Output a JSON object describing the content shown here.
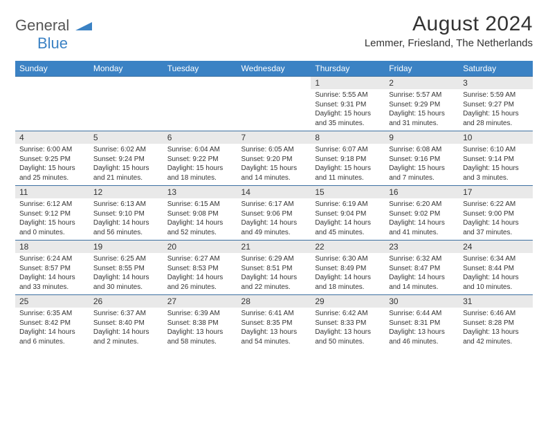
{
  "logo": {
    "text1": "General",
    "text2": "Blue",
    "triangle_color": "#3b82c4"
  },
  "header": {
    "title": "August 2024",
    "location": "Lemmer, Friesland, The Netherlands"
  },
  "colors": {
    "header_bg": "#3b82c4",
    "header_text": "#ffffff",
    "daynum_bg": "#e9e9e9",
    "rule": "#3b6fa0",
    "text": "#333333"
  },
  "weekdays": [
    "Sunday",
    "Monday",
    "Tuesday",
    "Wednesday",
    "Thursday",
    "Friday",
    "Saturday"
  ],
  "weeks": [
    [
      null,
      null,
      null,
      null,
      {
        "n": "1",
        "sunrise": "Sunrise: 5:55 AM",
        "sunset": "Sunset: 9:31 PM",
        "d1": "Daylight: 15 hours",
        "d2": "and 35 minutes."
      },
      {
        "n": "2",
        "sunrise": "Sunrise: 5:57 AM",
        "sunset": "Sunset: 9:29 PM",
        "d1": "Daylight: 15 hours",
        "d2": "and 31 minutes."
      },
      {
        "n": "3",
        "sunrise": "Sunrise: 5:59 AM",
        "sunset": "Sunset: 9:27 PM",
        "d1": "Daylight: 15 hours",
        "d2": "and 28 minutes."
      }
    ],
    [
      {
        "n": "4",
        "sunrise": "Sunrise: 6:00 AM",
        "sunset": "Sunset: 9:25 PM",
        "d1": "Daylight: 15 hours",
        "d2": "and 25 minutes."
      },
      {
        "n": "5",
        "sunrise": "Sunrise: 6:02 AM",
        "sunset": "Sunset: 9:24 PM",
        "d1": "Daylight: 15 hours",
        "d2": "and 21 minutes."
      },
      {
        "n": "6",
        "sunrise": "Sunrise: 6:04 AM",
        "sunset": "Sunset: 9:22 PM",
        "d1": "Daylight: 15 hours",
        "d2": "and 18 minutes."
      },
      {
        "n": "7",
        "sunrise": "Sunrise: 6:05 AM",
        "sunset": "Sunset: 9:20 PM",
        "d1": "Daylight: 15 hours",
        "d2": "and 14 minutes."
      },
      {
        "n": "8",
        "sunrise": "Sunrise: 6:07 AM",
        "sunset": "Sunset: 9:18 PM",
        "d1": "Daylight: 15 hours",
        "d2": "and 11 minutes."
      },
      {
        "n": "9",
        "sunrise": "Sunrise: 6:08 AM",
        "sunset": "Sunset: 9:16 PM",
        "d1": "Daylight: 15 hours",
        "d2": "and 7 minutes."
      },
      {
        "n": "10",
        "sunrise": "Sunrise: 6:10 AM",
        "sunset": "Sunset: 9:14 PM",
        "d1": "Daylight: 15 hours",
        "d2": "and 3 minutes."
      }
    ],
    [
      {
        "n": "11",
        "sunrise": "Sunrise: 6:12 AM",
        "sunset": "Sunset: 9:12 PM",
        "d1": "Daylight: 15 hours",
        "d2": "and 0 minutes."
      },
      {
        "n": "12",
        "sunrise": "Sunrise: 6:13 AM",
        "sunset": "Sunset: 9:10 PM",
        "d1": "Daylight: 14 hours",
        "d2": "and 56 minutes."
      },
      {
        "n": "13",
        "sunrise": "Sunrise: 6:15 AM",
        "sunset": "Sunset: 9:08 PM",
        "d1": "Daylight: 14 hours",
        "d2": "and 52 minutes."
      },
      {
        "n": "14",
        "sunrise": "Sunrise: 6:17 AM",
        "sunset": "Sunset: 9:06 PM",
        "d1": "Daylight: 14 hours",
        "d2": "and 49 minutes."
      },
      {
        "n": "15",
        "sunrise": "Sunrise: 6:19 AM",
        "sunset": "Sunset: 9:04 PM",
        "d1": "Daylight: 14 hours",
        "d2": "and 45 minutes."
      },
      {
        "n": "16",
        "sunrise": "Sunrise: 6:20 AM",
        "sunset": "Sunset: 9:02 PM",
        "d1": "Daylight: 14 hours",
        "d2": "and 41 minutes."
      },
      {
        "n": "17",
        "sunrise": "Sunrise: 6:22 AM",
        "sunset": "Sunset: 9:00 PM",
        "d1": "Daylight: 14 hours",
        "d2": "and 37 minutes."
      }
    ],
    [
      {
        "n": "18",
        "sunrise": "Sunrise: 6:24 AM",
        "sunset": "Sunset: 8:57 PM",
        "d1": "Daylight: 14 hours",
        "d2": "and 33 minutes."
      },
      {
        "n": "19",
        "sunrise": "Sunrise: 6:25 AM",
        "sunset": "Sunset: 8:55 PM",
        "d1": "Daylight: 14 hours",
        "d2": "and 30 minutes."
      },
      {
        "n": "20",
        "sunrise": "Sunrise: 6:27 AM",
        "sunset": "Sunset: 8:53 PM",
        "d1": "Daylight: 14 hours",
        "d2": "and 26 minutes."
      },
      {
        "n": "21",
        "sunrise": "Sunrise: 6:29 AM",
        "sunset": "Sunset: 8:51 PM",
        "d1": "Daylight: 14 hours",
        "d2": "and 22 minutes."
      },
      {
        "n": "22",
        "sunrise": "Sunrise: 6:30 AM",
        "sunset": "Sunset: 8:49 PM",
        "d1": "Daylight: 14 hours",
        "d2": "and 18 minutes."
      },
      {
        "n": "23",
        "sunrise": "Sunrise: 6:32 AM",
        "sunset": "Sunset: 8:47 PM",
        "d1": "Daylight: 14 hours",
        "d2": "and 14 minutes."
      },
      {
        "n": "24",
        "sunrise": "Sunrise: 6:34 AM",
        "sunset": "Sunset: 8:44 PM",
        "d1": "Daylight: 14 hours",
        "d2": "and 10 minutes."
      }
    ],
    [
      {
        "n": "25",
        "sunrise": "Sunrise: 6:35 AM",
        "sunset": "Sunset: 8:42 PM",
        "d1": "Daylight: 14 hours",
        "d2": "and 6 minutes."
      },
      {
        "n": "26",
        "sunrise": "Sunrise: 6:37 AM",
        "sunset": "Sunset: 8:40 PM",
        "d1": "Daylight: 14 hours",
        "d2": "and 2 minutes."
      },
      {
        "n": "27",
        "sunrise": "Sunrise: 6:39 AM",
        "sunset": "Sunset: 8:38 PM",
        "d1": "Daylight: 13 hours",
        "d2": "and 58 minutes."
      },
      {
        "n": "28",
        "sunrise": "Sunrise: 6:41 AM",
        "sunset": "Sunset: 8:35 PM",
        "d1": "Daylight: 13 hours",
        "d2": "and 54 minutes."
      },
      {
        "n": "29",
        "sunrise": "Sunrise: 6:42 AM",
        "sunset": "Sunset: 8:33 PM",
        "d1": "Daylight: 13 hours",
        "d2": "and 50 minutes."
      },
      {
        "n": "30",
        "sunrise": "Sunrise: 6:44 AM",
        "sunset": "Sunset: 8:31 PM",
        "d1": "Daylight: 13 hours",
        "d2": "and 46 minutes."
      },
      {
        "n": "31",
        "sunrise": "Sunrise: 6:46 AM",
        "sunset": "Sunset: 8:28 PM",
        "d1": "Daylight: 13 hours",
        "d2": "and 42 minutes."
      }
    ]
  ]
}
